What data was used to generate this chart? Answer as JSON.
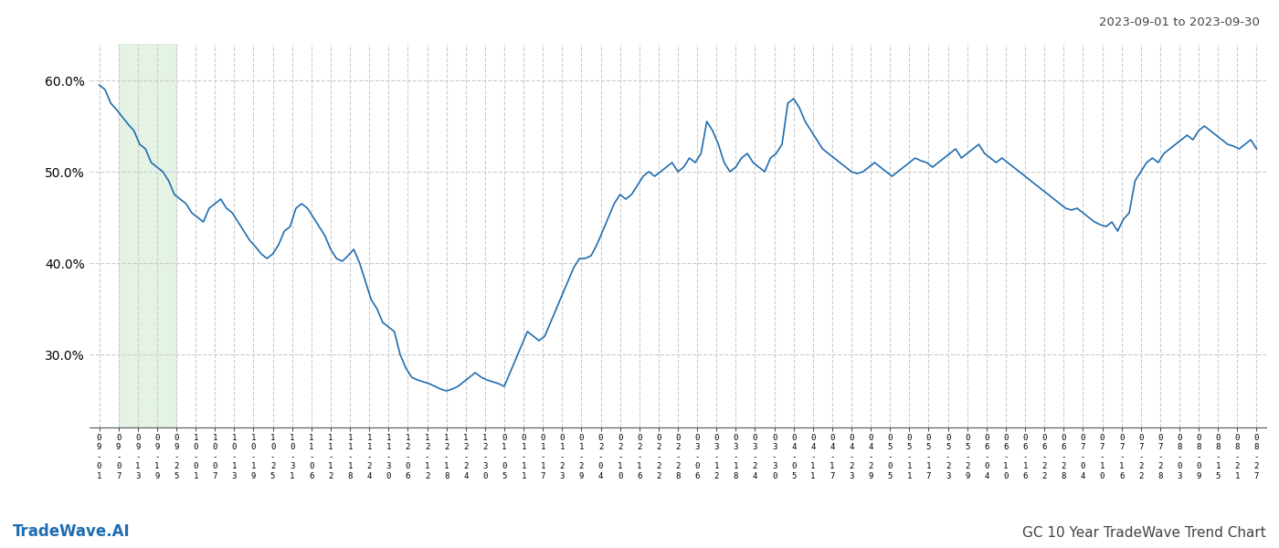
{
  "title_top_right": "2023-09-01 to 2023-09-30",
  "title_bottom_left": "TradeWave.AI",
  "title_bottom_right": "GC 10 Year TradeWave Trend Chart",
  "line_color": "#1f6cb0",
  "line_width": 1.2,
  "shade_color": "#d4ecd4",
  "shade_alpha": 0.6,
  "background_color": "#ffffff",
  "grid_color": "#cccccc",
  "grid_style": "--",
  "ylim": [
    22,
    64
  ],
  "yticks": [
    30.0,
    40.0,
    50.0,
    60.0
  ],
  "x_labels": [
    "09-01",
    "09-07",
    "09-13",
    "09-19",
    "09-25",
    "10-01",
    "10-07",
    "10-13",
    "10-19",
    "10-25",
    "10-31",
    "11-06",
    "11-12",
    "11-18",
    "11-24",
    "11-30",
    "12-06",
    "12-12",
    "12-18",
    "12-24",
    "12-30",
    "01-05",
    "01-11",
    "01-17",
    "01-23",
    "01-29",
    "02-04",
    "02-10",
    "02-16",
    "02-22",
    "02-28",
    "03-06",
    "03-12",
    "03-18",
    "03-24",
    "03-30",
    "04-05",
    "04-11",
    "04-17",
    "04-23",
    "04-29",
    "05-05",
    "05-11",
    "05-17",
    "05-23",
    "05-29",
    "06-04",
    "06-10",
    "06-16",
    "06-22",
    "06-28",
    "07-04",
    "07-10",
    "07-16",
    "07-22",
    "07-28",
    "08-03",
    "08-09",
    "08-15",
    "08-21",
    "08-27"
  ],
  "shade_start_label": "09-07",
  "shade_end_label": "09-25",
  "values": [
    59.5,
    59.0,
    57.5,
    56.8,
    56.0,
    55.2,
    54.5,
    53.0,
    52.5,
    51.0,
    50.5,
    50.0,
    49.0,
    47.5,
    47.0,
    46.5,
    45.5,
    45.0,
    44.5,
    46.0,
    46.5,
    47.0,
    46.0,
    45.5,
    44.5,
    43.5,
    42.5,
    41.8,
    41.0,
    40.5,
    41.0,
    42.0,
    43.5,
    44.0,
    46.0,
    46.5,
    46.0,
    45.0,
    44.0,
    43.0,
    41.5,
    40.5,
    40.2,
    40.8,
    41.5,
    40.0,
    38.0,
    36.0,
    35.0,
    33.5,
    33.0,
    32.5,
    30.0,
    28.5,
    27.5,
    27.2,
    27.0,
    26.8,
    26.5,
    26.2,
    26.0,
    26.2,
    26.5,
    27.0,
    27.5,
    28.0,
    27.5,
    27.2,
    27.0,
    26.8,
    26.5,
    28.0,
    29.5,
    31.0,
    32.5,
    32.0,
    31.5,
    32.0,
    33.5,
    35.0,
    36.5,
    38.0,
    39.5,
    40.5,
    40.5,
    40.8,
    42.0,
    43.5,
    45.0,
    46.5,
    47.5,
    47.0,
    47.5,
    48.5,
    49.5,
    50.0,
    49.5,
    50.0,
    50.5,
    51.0,
    50.0,
    50.5,
    51.5,
    51.0,
    52.0,
    55.5,
    54.5,
    53.0,
    51.0,
    50.0,
    50.5,
    51.5,
    52.0,
    51.0,
    50.5,
    50.0,
    51.5,
    52.0,
    53.0,
    57.5,
    58.0,
    57.0,
    55.5,
    54.5,
    53.5,
    52.5,
    52.0,
    51.5,
    51.0,
    50.5,
    50.0,
    49.8,
    50.0,
    50.5,
    51.0,
    50.5,
    50.0,
    49.5,
    50.0,
    50.5,
    51.0,
    51.5,
    51.2,
    51.0,
    50.5,
    51.0,
    51.5,
    52.0,
    52.5,
    51.5,
    52.0,
    52.5,
    53.0,
    52.0,
    51.5,
    51.0,
    51.5,
    51.0,
    50.5,
    50.0,
    49.5,
    49.0,
    48.5,
    48.0,
    47.5,
    47.0,
    46.5,
    46.0,
    45.8,
    46.0,
    45.5,
    45.0,
    44.5,
    44.2,
    44.0,
    44.5,
    43.5,
    44.8,
    45.5,
    49.0,
    50.0,
    51.0,
    51.5,
    51.0,
    52.0,
    52.5,
    53.0,
    53.5,
    54.0,
    53.5,
    54.5,
    55.0,
    54.5,
    54.0,
    53.5,
    53.0,
    52.8,
    52.5,
    53.0,
    53.5,
    52.5
  ]
}
